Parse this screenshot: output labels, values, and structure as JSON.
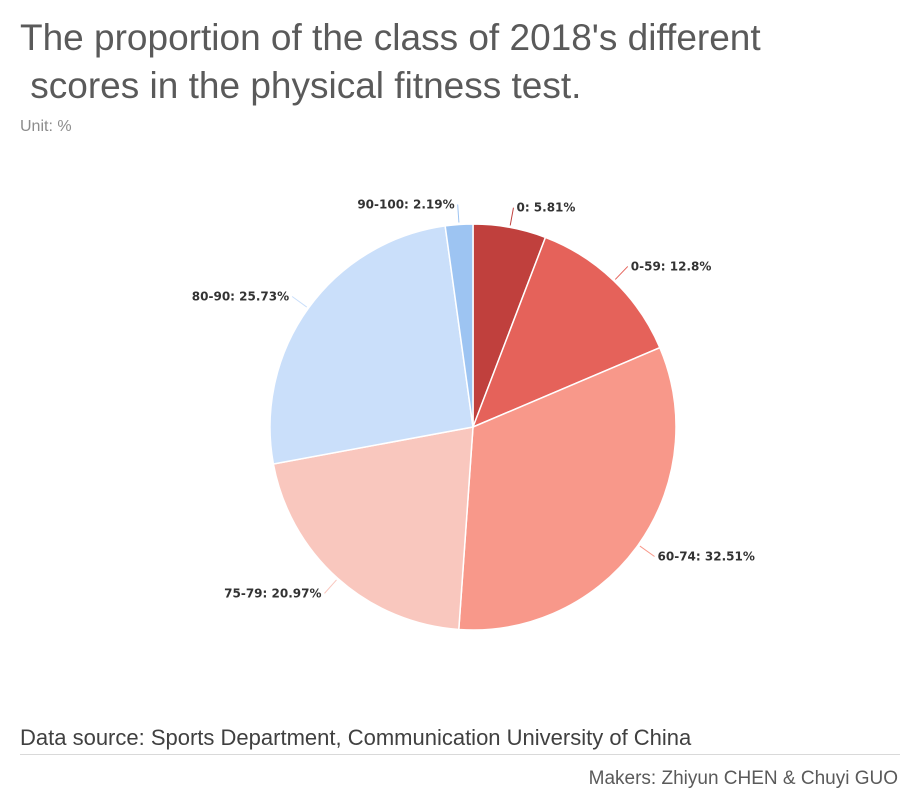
{
  "title": "The proportion of the class of 2018's different\n scores in the physical fitness test.",
  "subtitle": "Unit: %",
  "footer": {
    "source": "Data source: Sports Department, Communication University of China",
    "makers": "Makers: Zhiyun CHEN & Chuyi GUO"
  },
  "chart_data": {
    "type": "pie",
    "title": "The proportion of the class of 2018's different scores in the physical fitness test.",
    "unit": "Unit: %",
    "slices": [
      {
        "label": "0",
        "value": 5.81,
        "display": "0: 5.81%",
        "color": "#c0403d"
      },
      {
        "label": "0-59",
        "value": 12.8,
        "display": "0-59: 12.8%",
        "color": "#e5625a"
      },
      {
        "label": "60-74",
        "value": 32.51,
        "display": "60-74: 32.51%",
        "color": "#f8988a"
      },
      {
        "label": "75-79",
        "value": 20.97,
        "display": "75-79: 20.97%",
        "color": "#f9c7be"
      },
      {
        "label": "80-90",
        "value": 25.73,
        "display": "80-90: 25.73%",
        "color": "#cadffa"
      },
      {
        "label": "90-100",
        "value": 2.19,
        "display": "90-100: 2.19%",
        "color": "#9dc4f2"
      }
    ],
    "start_angle": "12 o'clock",
    "direction": "clockwise",
    "legend": "none"
  }
}
